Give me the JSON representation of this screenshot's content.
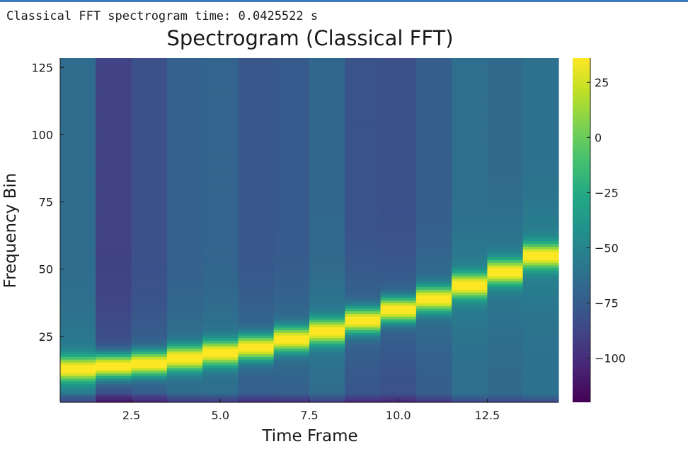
{
  "console": {
    "output_line": "Classical FFT spectrogram time: 0.0425522 s"
  },
  "chart_data": {
    "type": "heatmap",
    "title": "Spectrogram (Classical FFT)",
    "xlabel": "Time Frame",
    "ylabel": "Frequency Bin",
    "xlim": [
      0.5,
      14.5
    ],
    "ylim": [
      0.5,
      128.5
    ],
    "x_ticks": [
      2.5,
      5.0,
      7.5,
      10.0,
      12.5
    ],
    "x_tick_labels": [
      "2.5",
      "5.0",
      "7.5",
      "10.0",
      "12.5"
    ],
    "y_ticks": [
      25,
      50,
      75,
      100,
      125
    ],
    "y_tick_labels": [
      "25",
      "50",
      "75",
      "100",
      "125"
    ],
    "time_frames": [
      1,
      2,
      3,
      4,
      5,
      6,
      7,
      8,
      9,
      10,
      11,
      12,
      13,
      14
    ],
    "peak_frequency_bin": [
      13,
      14,
      15,
      17,
      19,
      21,
      24,
      27,
      31,
      35,
      39,
      44,
      49,
      55
    ],
    "background_level": [
      -65,
      -90,
      -82,
      -72,
      -70,
      -78,
      -76,
      -68,
      -80,
      -82,
      -74,
      -64,
      -66,
      -62
    ],
    "colorbar": {
      "colormap": "viridis",
      "range": [
        -120,
        36
      ],
      "ticks": [
        25,
        0,
        -25,
        -50,
        -75,
        -100
      ],
      "tick_labels": [
        "25",
        "0",
        "−25",
        "−50",
        "−75",
        "−100"
      ]
    },
    "grid": false,
    "legend": "none"
  }
}
